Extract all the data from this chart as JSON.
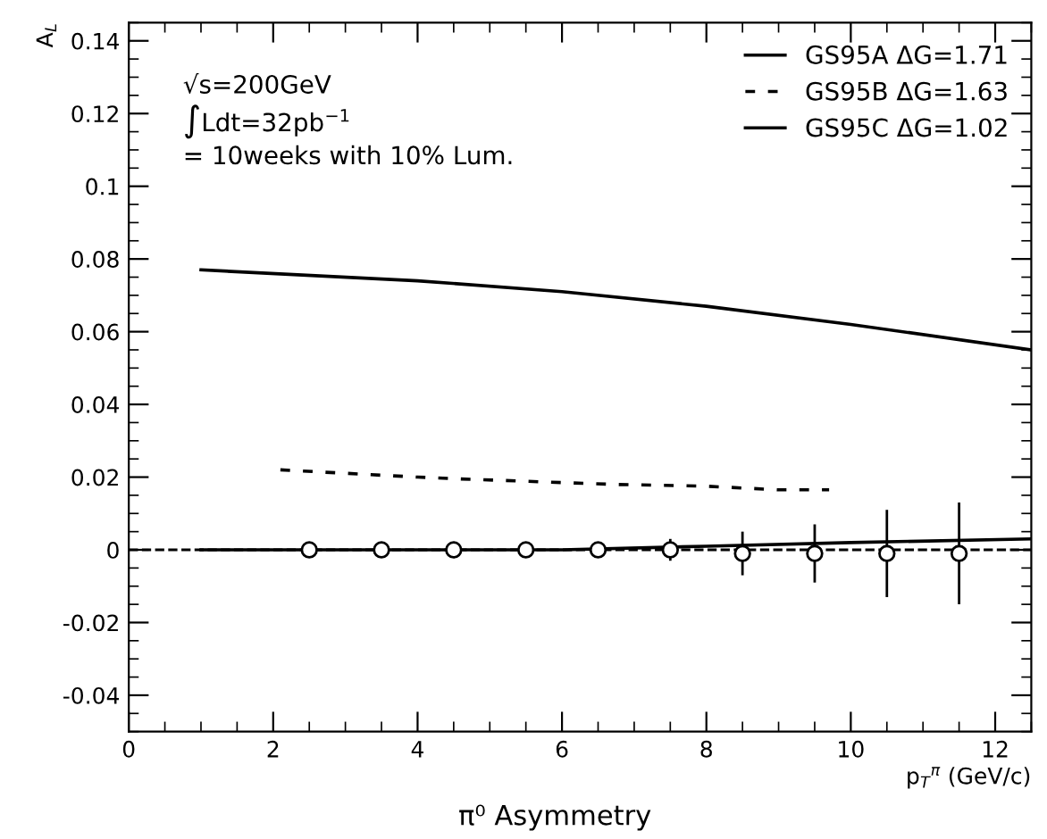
{
  "chart_data": {
    "type": "line",
    "title": "π⁰ Asymmetry",
    "xlabel": "p$_{T}$$^{π}$ (GeV/c)",
    "ylabel": "A$_{L}$",
    "annotations": [
      "√s=200GeV",
      "∫Ldt=32pb$^{−1}$",
      "= 10weeks with 10% Lum."
    ],
    "xlim": [
      0,
      12.5
    ],
    "xticks": [
      0,
      2,
      4,
      6,
      8,
      10,
      12
    ],
    "ylim": [
      -0.05,
      0.145
    ],
    "yticks": [
      -0.04,
      -0.02,
      0,
      0.02,
      0.04,
      0.06,
      0.08,
      0.1,
      0.12,
      0.14
    ],
    "grid": false,
    "legend": "top right",
    "ref_lines": [
      {
        "axis": "y",
        "value": 0,
        "color": "#000000",
        "line_style": "dashed"
      }
    ],
    "series": [
      {
        "name": "GS95A ΔG=1.71",
        "color": "#000000",
        "line_style": "solid",
        "x": [
          1,
          4,
          6,
          8,
          10,
          12.5
        ],
        "values": [
          0.077,
          0.074,
          0.071,
          0.067,
          0.062,
          0.055
        ]
      },
      {
        "name": "GS95B ΔG=1.63",
        "color": "#000000",
        "line_style": "dashed",
        "x": [
          2.1,
          4,
          4.6,
          6.7,
          8,
          9,
          9.7
        ],
        "values": [
          0.022,
          0.02,
          0.0195,
          0.018,
          0.0175,
          0.0165,
          0.0165
        ]
      },
      {
        "name": "GS95C ΔG=1.02",
        "color": "#000000",
        "line_style": "solid",
        "x": [
          1,
          4,
          6,
          8,
          10,
          12.5
        ],
        "values": [
          0,
          0,
          0,
          0.001,
          0.002,
          0.003
        ]
      },
      {
        "type": "scatter",
        "marker": "circle",
        "color": "#000000",
        "x": [
          2.5,
          3.5,
          4.5,
          5.5,
          6.5,
          7.5,
          8.5,
          9.5,
          10.5,
          11.5
        ],
        "values": [
          0,
          0,
          0,
          0,
          0,
          0,
          -0.001,
          -0.001,
          -0.001,
          -0.001
        ],
        "errors": [
          0.0005,
          0.0005,
          0.0007,
          0.001,
          0.002,
          0.003,
          0.006,
          0.008,
          0.012,
          0.014
        ]
      }
    ]
  }
}
